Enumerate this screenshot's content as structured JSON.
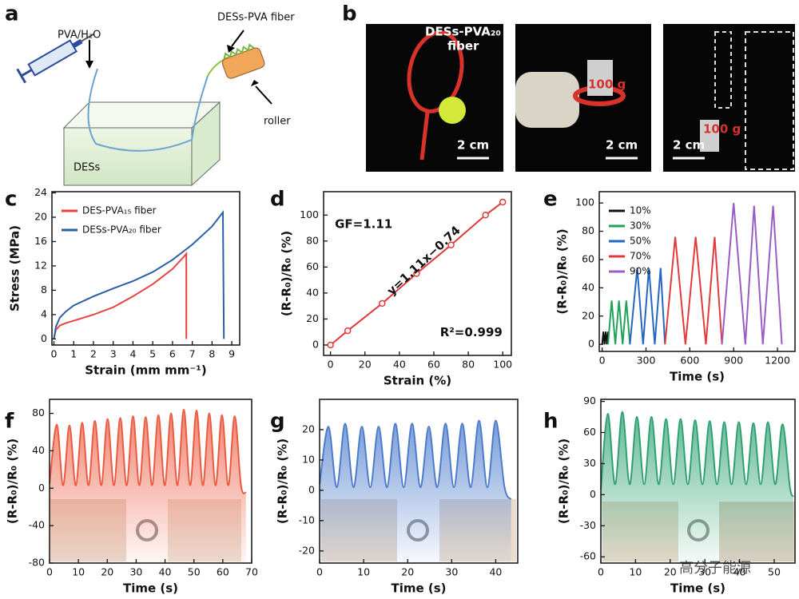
{
  "panel_labels": [
    "a",
    "b",
    "c",
    "d",
    "e",
    "f",
    "g",
    "h"
  ],
  "schematic": {
    "syringe_label": "PVA/H₂O",
    "fiber_label": "DESs-PVA fiber",
    "roller_label": "roller",
    "bath_label": "DESs"
  },
  "photos": [
    {
      "fiber_label": "DESs-PVA₂₀",
      "fiber_label_2": "fiber",
      "scale": "2 cm"
    },
    {
      "weight": "100 g",
      "scale": "2 cm"
    },
    {
      "weight": "100 g",
      "scale": "2 cm"
    }
  ],
  "watermark": "高分子能源",
  "chart_data": [
    {
      "type": "line",
      "xlabel": "Strain (mm mm⁻¹)",
      "ylabel": "Stress (MPa)",
      "xlim": [
        -0.1,
        9.4
      ],
      "xticks": [
        0,
        1,
        2,
        3,
        4,
        5,
        6,
        7,
        8,
        9
      ],
      "ylim": [
        -1,
        24.2
      ],
      "yticks": [
        0,
        4,
        8,
        12,
        16,
        20,
        24
      ],
      "legend": "upper left",
      "series": [
        {
          "name": "DES-PVA₁₅ fiber",
          "color": "#e8423e",
          "x": [
            0,
            0.1,
            0.3,
            0.6,
            1,
            2,
            3,
            4,
            5,
            6,
            6.6,
            6.7,
            6.7
          ],
          "values": [
            0,
            1.5,
            2.2,
            2.6,
            3,
            4,
            5.2,
            7,
            9,
            11.5,
            13.6,
            14,
            0
          ]
        },
        {
          "name": "DESs-PVA₂₀ fiber",
          "color": "#2a5fa8",
          "x": [
            0,
            0.1,
            0.3,
            0.6,
            1,
            2,
            3,
            4,
            5,
            6,
            7,
            8,
            8.55,
            8.6
          ],
          "values": [
            0,
            2,
            3.5,
            4.5,
            5.5,
            7,
            8.3,
            9.5,
            11,
            13,
            15.5,
            18.5,
            20.8,
            0
          ]
        }
      ]
    },
    {
      "type": "line",
      "xlabel": "Strain (%)",
      "ylabel": "(R-R₀)/R₀ (%)",
      "xlim": [
        -4,
        105
      ],
      "xticks": [
        0,
        20,
        40,
        60,
        80,
        100
      ],
      "ylim": [
        -8,
        118
      ],
      "yticks": [
        0,
        20,
        40,
        60,
        80,
        100
      ],
      "annotations": [
        "GF=1.11",
        "y=1.11x−0.74",
        "R²=0.999"
      ],
      "series": [
        {
          "color": "#e03a3a",
          "marker": "circle",
          "x": [
            0,
            10,
            30,
            50,
            70,
            90,
            100
          ],
          "values": [
            0,
            11,
            32,
            55,
            77,
            100,
            110
          ]
        }
      ]
    },
    {
      "type": "line",
      "xlabel": "Time (s)",
      "ylabel": "(R-R₀)/R₀ (%)",
      "xlim": [
        -20,
        1320
      ],
      "xticks": [
        0,
        300,
        600,
        900,
        1200
      ],
      "ylim": [
        -5,
        108
      ],
      "yticks": [
        0,
        20,
        40,
        60,
        80,
        100
      ],
      "legend": "upper left",
      "series": [
        {
          "name": "10%",
          "color": "#111111",
          "x": [
            0,
            8,
            16,
            24,
            32,
            40
          ],
          "values": [
            0,
            9,
            0,
            9,
            0,
            9
          ]
        },
        {
          "name": "30%",
          "color": "#1fa35a",
          "x": [
            40,
            65,
            90,
            115,
            140,
            165,
            190
          ],
          "values": [
            0,
            31,
            0,
            31,
            0,
            31,
            0
          ]
        },
        {
          "name": "50%",
          "color": "#2466c4",
          "x": [
            190,
            240,
            280,
            320,
            360,
            400,
            430
          ],
          "values": [
            0,
            54,
            0,
            54,
            0,
            54,
            0
          ]
        },
        {
          "name": "70%",
          "color": "#e33b3b",
          "x": [
            430,
            500,
            570,
            640,
            710,
            770,
            820
          ],
          "values": [
            0,
            76,
            0,
            76,
            0,
            76,
            0
          ]
        },
        {
          "name": "90%",
          "color": "#9a5cc6",
          "x": [
            820,
            900,
            980,
            1040,
            1100,
            1170,
            1230
          ],
          "values": [
            0,
            100,
            0,
            98,
            0,
            98,
            0
          ]
        }
      ]
    },
    {
      "type": "area",
      "xlabel": "Time (s)",
      "ylabel": "(R-R₀)/R₀ (%)",
      "xlim": [
        0,
        70
      ],
      "xticks": [
        0,
        10,
        20,
        30,
        40,
        50,
        60,
        70
      ],
      "ylim": [
        -80,
        95
      ],
      "yticks": [
        -80,
        -40,
        0,
        40,
        80
      ],
      "series": [
        {
          "color": "#ec5a40",
          "x": [
            0,
            2.5,
            4.7,
            6.9,
            9.1,
            11.3,
            13.5,
            15.7,
            17.9,
            20.1,
            22.3,
            24.5,
            26.7,
            28.9,
            31.1,
            33.3,
            35.5,
            37.7,
            39.9,
            42.1,
            44.3,
            46.5,
            48.7,
            50.9,
            53.1,
            55.3,
            57.5,
            59.7,
            61.9,
            64.1,
            66.3,
            68
          ],
          "values": [
            5,
            68,
            3,
            67,
            3,
            70,
            3,
            72,
            3,
            74,
            3,
            75,
            3,
            77,
            3,
            76,
            3,
            78,
            3,
            80,
            3,
            84,
            3,
            83,
            3,
            80,
            3,
            78,
            3,
            77,
            3,
            -5
          ]
        }
      ]
    },
    {
      "type": "area",
      "xlabel": "Time (s)",
      "ylabel": "(R-R₀)/R₀ (%)",
      "xlim": [
        0,
        45
      ],
      "xticks": [
        0,
        10,
        20,
        30,
        40
      ],
      "ylim": [
        -24,
        30
      ],
      "yticks": [
        -20,
        -10,
        0,
        10,
        20
      ],
      "series": [
        {
          "color": "#4d7ccc",
          "x": [
            0,
            2,
            3.9,
            5.8,
            7.7,
            9.6,
            11.5,
            13.4,
            15.3,
            17.2,
            19.1,
            21,
            22.9,
            24.8,
            26.7,
            28.6,
            30.5,
            32.4,
            34.3,
            36.2,
            38.1,
            40,
            42,
            43.5
          ],
          "values": [
            2,
            21,
            1,
            22,
            1,
            21,
            1,
            21,
            1,
            22,
            1,
            22,
            1,
            21,
            1,
            22,
            1,
            22,
            1,
            23,
            1,
            23,
            1,
            -3
          ]
        }
      ]
    },
    {
      "type": "area",
      "xlabel": "Time (s)",
      "ylabel": "(R-R₀)/R₀ (%)",
      "xlim": [
        0,
        56
      ],
      "xticks": [
        0,
        10,
        20,
        30,
        40,
        50
      ],
      "ylim": [
        -66,
        92
      ],
      "yticks": [
        -60,
        -30,
        0,
        30,
        60,
        90
      ],
      "series": [
        {
          "color": "#2ea172",
          "x": [
            0,
            2,
            4.1,
            6.2,
            8.3,
            10.4,
            12.5,
            14.6,
            16.7,
            18.8,
            20.9,
            23,
            25.1,
            27.2,
            29.3,
            31.4,
            33.5,
            35.6,
            37.7,
            39.8,
            41.9,
            44,
            46.1,
            48.2,
            50.3,
            52.4,
            54.5,
            55.5
          ],
          "values": [
            5,
            78,
            10,
            80,
            10,
            75,
            10,
            75,
            10,
            73,
            10,
            73,
            10,
            72,
            10,
            71,
            10,
            70,
            10,
            70,
            10,
            69,
            10,
            70,
            10,
            68,
            8,
            -2
          ]
        }
      ]
    }
  ]
}
